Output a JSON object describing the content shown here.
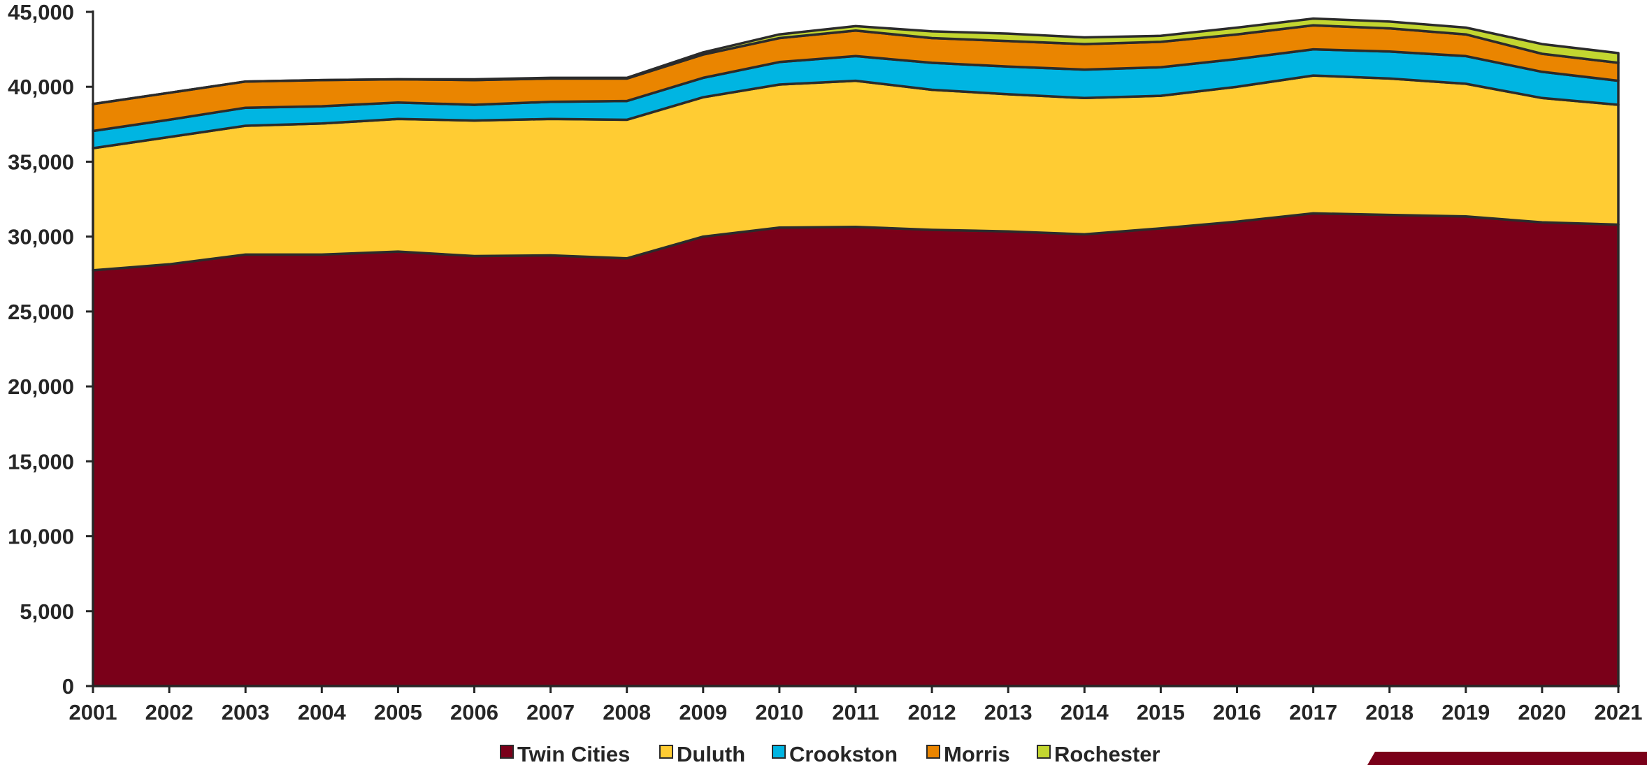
{
  "colors": {
    "twin_cities": "#7a0019",
    "duluth": "#ffcc33",
    "crookston": "#00b5e2",
    "morris": "#ea8500",
    "rochester": "#c3d630",
    "outline": "#2b2b2b",
    "axis": "#262626",
    "accent_bar": "#7a0019"
  },
  "chart_data": {
    "type": "area",
    "stacked": true,
    "x": [
      "2001",
      "2002",
      "2003",
      "2004",
      "2005",
      "2006",
      "2007",
      "2008",
      "2009",
      "2010",
      "2011",
      "2012",
      "2013",
      "2014",
      "2015",
      "2016",
      "2017",
      "2018",
      "2019",
      "2020",
      "2021"
    ],
    "series": [
      {
        "name": "Twin Cities",
        "color": "#7a0019",
        "values": [
          27750,
          28150,
          28800,
          28800,
          29000,
          28700,
          28750,
          28550,
          30000,
          30600,
          30650,
          30450,
          30350,
          30150,
          30550,
          31000,
          31550,
          31450,
          31350,
          30950,
          30800
        ]
      },
      {
        "name": "Duluth",
        "color": "#ffcc33",
        "values": [
          8150,
          8500,
          8600,
          8750,
          8850,
          9050,
          9100,
          9250,
          9300,
          9550,
          9750,
          9350,
          9150,
          9100,
          8850,
          9000,
          9200,
          9100,
          8850,
          8300,
          8000
        ]
      },
      {
        "name": "Crookston",
        "color": "#00b5e2",
        "values": [
          1150,
          1150,
          1200,
          1150,
          1100,
          1050,
          1150,
          1250,
          1300,
          1500,
          1650,
          1800,
          1850,
          1900,
          1900,
          1850,
          1750,
          1800,
          1850,
          1750,
          1600
        ]
      },
      {
        "name": "Morris",
        "color": "#ea8500",
        "values": [
          1800,
          1800,
          1750,
          1750,
          1550,
          1650,
          1550,
          1500,
          1550,
          1600,
          1700,
          1650,
          1700,
          1700,
          1700,
          1650,
          1600,
          1550,
          1450,
          1200,
          1200
        ]
      },
      {
        "name": "Rochester",
        "color": "#c3d630",
        "values": [
          0,
          0,
          0,
          0,
          0,
          50,
          50,
          50,
          150,
          250,
          300,
          450,
          500,
          450,
          400,
          450,
          450,
          450,
          450,
          650,
          650
        ]
      }
    ],
    "ylim": [
      0,
      45000
    ],
    "yticks": [
      "0",
      "5,000",
      "10,000",
      "15,000",
      "20,000",
      "25,000",
      "30,000",
      "35,000",
      "40,000",
      "45,000"
    ],
    "grid": false,
    "legend_position": "bottom",
    "title": "",
    "xlabel": "",
    "ylabel": ""
  }
}
